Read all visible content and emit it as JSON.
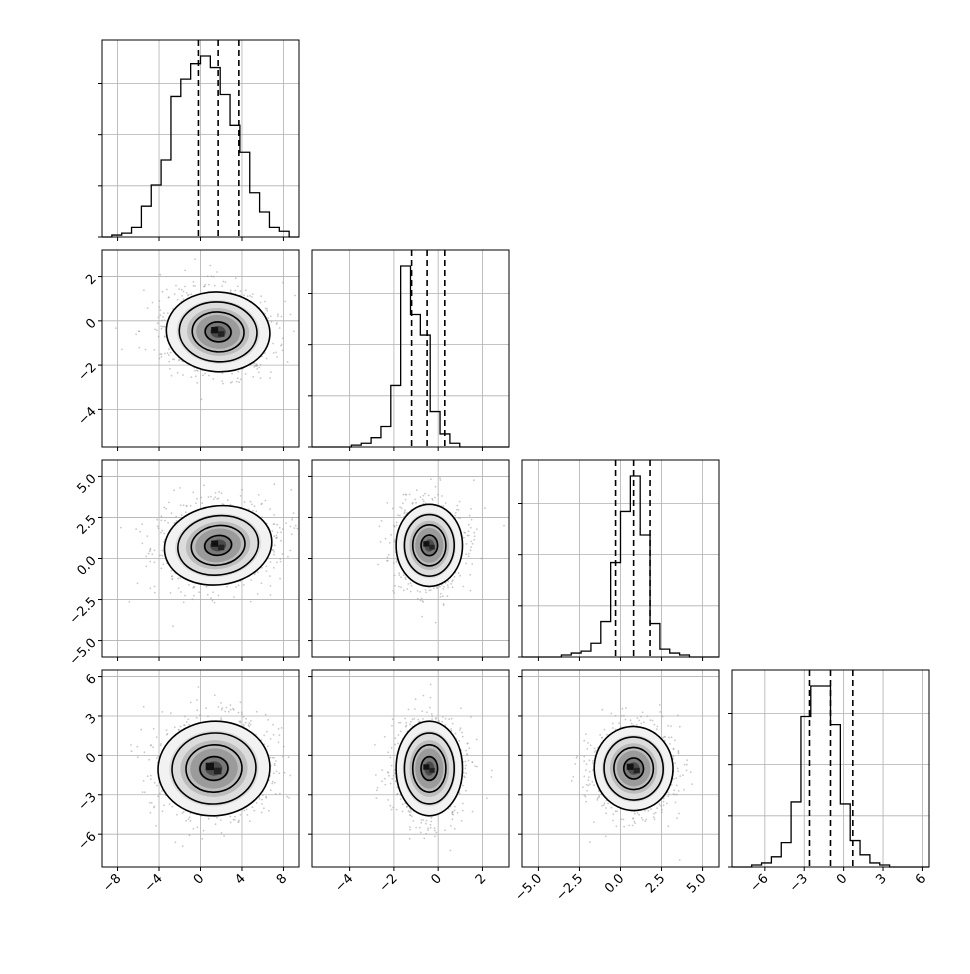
{
  "chart_data": {
    "type": "corner",
    "grid": true,
    "quantiles": [
      0.16,
      0.5,
      0.84
    ],
    "parameters": [
      {
        "range": [
          -9.5,
          9.5
        ],
        "ticks": [
          -8,
          -4,
          0,
          4,
          8
        ],
        "tick_labels": [
          "−8",
          "−4",
          "0",
          "4",
          "8"
        ],
        "quantile_values": [
          -0.2,
          1.7,
          3.7
        ]
      },
      {
        "range": [
          -5.7,
          3.2
        ],
        "ticks": [
          -4,
          -2,
          0,
          2
        ],
        "tick_labels": [
          "−4",
          "−2",
          "0",
          "2"
        ],
        "quantile_values": [
          -1.2,
          -0.5,
          0.3
        ]
      },
      {
        "range": [
          -6.0,
          6.0
        ],
        "ticks": [
          -5,
          -2.5,
          0,
          2.5,
          5
        ],
        "tick_labels": [
          "−5.0",
          "−2.5",
          "0.0",
          "2.5",
          "5.0"
        ],
        "quantile_values": [
          -0.3,
          0.8,
          1.8
        ]
      },
      {
        "range": [
          -8.5,
          6.5
        ],
        "ticks": [
          -6,
          -3,
          0,
          3,
          6
        ],
        "tick_labels": [
          "−6",
          "−3",
          "0",
          "3",
          "6"
        ],
        "quantile_values": [
          -2.6,
          -1.0,
          0.7
        ]
      }
    ],
    "histograms": [
      {
        "counts": [
          0,
          1,
          2,
          5,
          16,
          27,
          40,
          73,
          82,
          90,
          94,
          88,
          74,
          58,
          44,
          23,
          13,
          5,
          3,
          0
        ]
      },
      {
        "counts": [
          0,
          0,
          0,
          0,
          1,
          2,
          5,
          11,
          33,
          97,
          71,
          60,
          19,
          7,
          2,
          0,
          0,
          0,
          0,
          0
        ]
      },
      {
        "counts": [
          0,
          0,
          0,
          0,
          1,
          2,
          3,
          7,
          18,
          48,
          74,
          92,
          62,
          17,
          4,
          2,
          1,
          0,
          0,
          0
        ]
      },
      {
        "counts": [
          0,
          0,
          1,
          2,
          5,
          12,
          32,
          74,
          89,
          89,
          70,
          31,
          13,
          6,
          2,
          1,
          0,
          0,
          0,
          0
        ]
      }
    ],
    "pairs": [
      {
        "x_param": 0,
        "y_param": 1,
        "center": [
          1.7,
          -0.5
        ],
        "sd": [
          2.5,
          0.9
        ],
        "corr": -0.1
      },
      {
        "x_param": 0,
        "y_param": 2,
        "center": [
          1.7,
          0.8
        ],
        "sd": [
          2.6,
          1.2
        ],
        "corr": 0.2
      },
      {
        "x_param": 1,
        "y_param": 2,
        "center": [
          -0.4,
          0.8
        ],
        "sd": [
          0.75,
          1.25
        ],
        "corr": 0.0
      },
      {
        "x_param": 0,
        "y_param": 3,
        "center": [
          1.3,
          -1.0
        ],
        "sd": [
          2.7,
          1.8
        ],
        "corr": 0.1
      },
      {
        "x_param": 1,
        "y_param": 3,
        "center": [
          -0.4,
          -1.0
        ],
        "sd": [
          0.75,
          1.8
        ],
        "corr": 0.0
      },
      {
        "x_param": 2,
        "y_param": 3,
        "center": [
          0.8,
          -1.0
        ],
        "sd": [
          1.2,
          1.6
        ],
        "corr": 0.1
      }
    ],
    "contour_levels_sigma": [
      0.5,
      1.0,
      1.5,
      2.0
    ]
  }
}
